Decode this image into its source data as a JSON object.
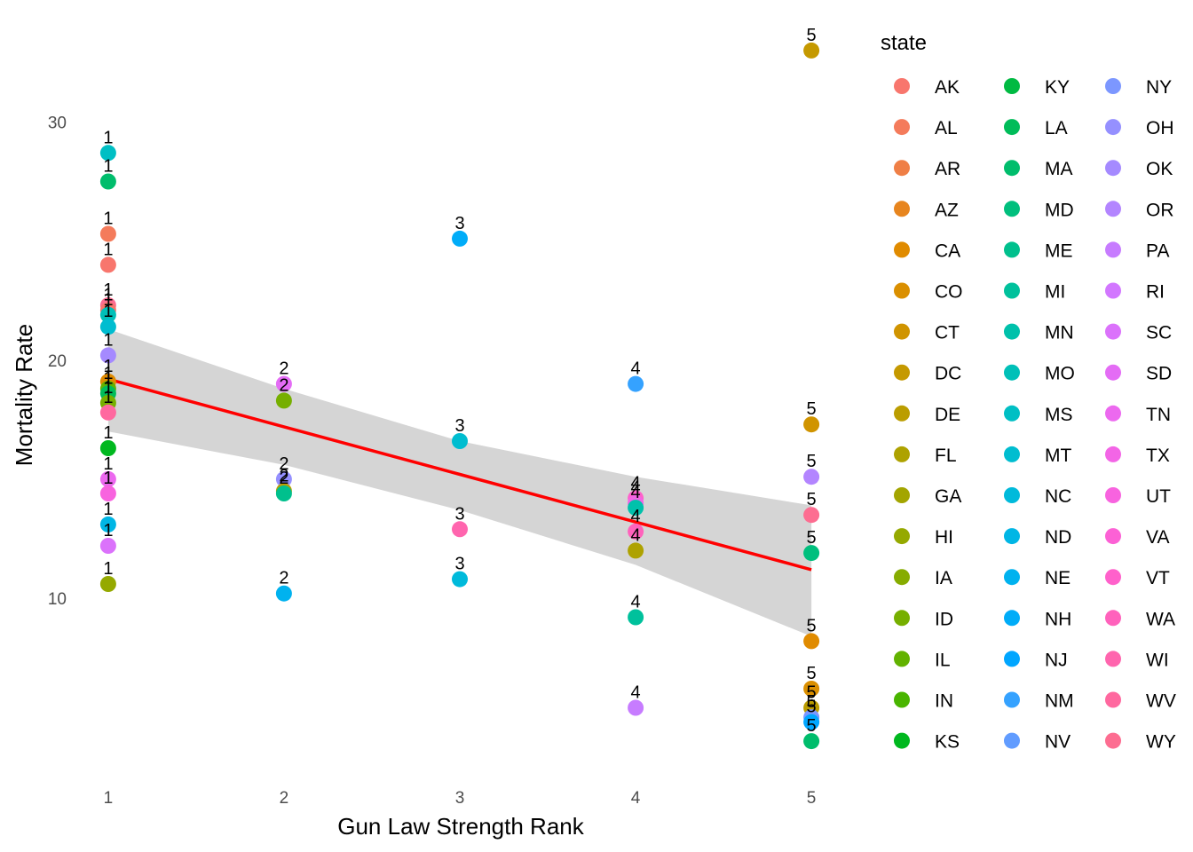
{
  "chart_data": {
    "type": "scatter",
    "xlabel": "Gun Law Strength Rank",
    "ylabel": "Mortality Rate",
    "x_ticks": [
      1,
      2,
      3,
      4,
      5
    ],
    "y_ticks": [
      10,
      20,
      30
    ],
    "xlim": [
      0.93,
      5.07
    ],
    "ylim": [
      2.4,
      34.6
    ],
    "grid": false,
    "legend": {
      "title": "state",
      "placement": "right",
      "columns": 3
    },
    "states": [
      "AK",
      "AL",
      "AR",
      "AZ",
      "CA",
      "CO",
      "CT",
      "DC",
      "DE",
      "FL",
      "GA",
      "HI",
      "IA",
      "ID",
      "IL",
      "IN",
      "KS",
      "KY",
      "LA",
      "MA",
      "MD",
      "ME",
      "MI",
      "MN",
      "MO",
      "MS",
      "MT",
      "NC",
      "ND",
      "NE",
      "NH",
      "NJ",
      "NM",
      "NV",
      "NY",
      "OH",
      "OK",
      "OR",
      "PA",
      "RI",
      "SC",
      "SD",
      "TN",
      "TX",
      "UT",
      "VA",
      "VT",
      "WA",
      "WI",
      "WV",
      "WY"
    ],
    "colors": [
      "#F8766D",
      "#F47B5B",
      "#EF7F46",
      "#E7851E",
      "#E08B00",
      "#DA8F00",
      "#D09400",
      "#C59900",
      "#BB9D00",
      "#AEA200",
      "#A3A500",
      "#95A900",
      "#86AC00",
      "#76AF00",
      "#62B200",
      "#49B500",
      "#00B81F",
      "#00BA42",
      "#00BC59",
      "#00BD6C",
      "#00BF7D",
      "#00C08D",
      "#00C19C",
      "#00C1AB",
      "#00C0B8",
      "#00BFC4",
      "#00BDD0",
      "#00BADB",
      "#00B6E5",
      "#00B2EF",
      "#00ACF8",
      "#00A6FF",
      "#35A2FF",
      "#619CFF",
      "#7C97FF",
      "#9590FF",
      "#A58AFF",
      "#B385FF",
      "#C77CFF",
      "#D277FF",
      "#DB72FB",
      "#E46CF5",
      "#EC69EF",
      "#F365E6",
      "#F863DF",
      "#FC61D5",
      "#FF61CB",
      "#FF62BC",
      "#FF65AE",
      "#FF689F",
      "#FD6D91"
    ],
    "points": [
      {
        "x": 1,
        "y": 28.7,
        "label": "1",
        "color": "#00BFC4"
      },
      {
        "x": 1,
        "y": 27.5,
        "label": "1",
        "color": "#00BD6C"
      },
      {
        "x": 1,
        "y": 25.3,
        "label": "1",
        "color": "#F47B5B"
      },
      {
        "x": 1,
        "y": 24.0,
        "label": "1",
        "color": "#F8766D"
      },
      {
        "x": 1,
        "y": 22.3,
        "label": "1",
        "color": "#FD6D91"
      },
      {
        "x": 1,
        "y": 22.1,
        "label": "1",
        "color": "#F8766D"
      },
      {
        "x": 1,
        "y": 21.9,
        "label": "1",
        "color": "#00C0B8"
      },
      {
        "x": 1,
        "y": 21.4,
        "label": "1",
        "color": "#00BDD0"
      },
      {
        "x": 1,
        "y": 20.2,
        "label": "1",
        "color": "#A58AFF"
      },
      {
        "x": 1,
        "y": 19.1,
        "label": "1",
        "color": "#E08B00"
      },
      {
        "x": 1,
        "y": 18.8,
        "label": "1",
        "color": "#62B200"
      },
      {
        "x": 1,
        "y": 18.6,
        "label": "1",
        "color": "#00BC59"
      },
      {
        "x": 1,
        "y": 18.2,
        "label": "1",
        "color": "#76AF00"
      },
      {
        "x": 1,
        "y": 17.8,
        "label": "1",
        "color": "#FF689F"
      },
      {
        "x": 1,
        "y": 16.3,
        "label": "1",
        "color": "#00B81F"
      },
      {
        "x": 1,
        "y": 15.0,
        "label": "1",
        "color": "#EC69EF"
      },
      {
        "x": 1,
        "y": 14.4,
        "label": "1",
        "color": "#F863DF"
      },
      {
        "x": 1,
        "y": 13.1,
        "label": "1",
        "color": "#00B6E5"
      },
      {
        "x": 1,
        "y": 12.2,
        "label": "1",
        "color": "#DB72FB"
      },
      {
        "x": 1,
        "y": 10.6,
        "label": "1",
        "color": "#95A900"
      },
      {
        "x": 2,
        "y": 19.0,
        "label": "2",
        "color": "#E46CF5"
      },
      {
        "x": 2,
        "y": 18.3,
        "label": "2",
        "color": "#76AF00"
      },
      {
        "x": 2,
        "y": 15.0,
        "label": "2",
        "color": "#9590FF"
      },
      {
        "x": 2,
        "y": 14.5,
        "label": "2",
        "color": "#BB9D00"
      },
      {
        "x": 2,
        "y": 14.4,
        "label": "2",
        "color": "#00C08D"
      },
      {
        "x": 2,
        "y": 10.2,
        "label": "2",
        "color": "#00B2EF"
      },
      {
        "x": 3,
        "y": 25.1,
        "label": "3",
        "color": "#00ACF8"
      },
      {
        "x": 3,
        "y": 16.6,
        "label": "3",
        "color": "#00BDD0"
      },
      {
        "x": 3,
        "y": 12.9,
        "label": "3",
        "color": "#FF65AE"
      },
      {
        "x": 3,
        "y": 10.8,
        "label": "3",
        "color": "#00BADB"
      },
      {
        "x": 4,
        "y": 19.0,
        "label": "4",
        "color": "#35A2FF"
      },
      {
        "x": 4,
        "y": 14.2,
        "label": "4",
        "color": "#FF61CB"
      },
      {
        "x": 4,
        "y": 14.0,
        "label": "4",
        "color": "#F365E6"
      },
      {
        "x": 4,
        "y": 13.8,
        "label": "4",
        "color": "#00C1AB"
      },
      {
        "x": 4,
        "y": 12.8,
        "label": "4",
        "color": "#FF62BC"
      },
      {
        "x": 4,
        "y": 12.0,
        "label": "4",
        "color": "#AEA200"
      },
      {
        "x": 4,
        "y": 9.2,
        "label": "4",
        "color": "#00C19C"
      },
      {
        "x": 4,
        "y": 5.4,
        "label": "4",
        "color": "#C77CFF"
      },
      {
        "x": 5,
        "y": 33.0,
        "label": "5",
        "color": "#C59900"
      },
      {
        "x": 5,
        "y": 17.3,
        "label": "5",
        "color": "#D09400"
      },
      {
        "x": 5,
        "y": 15.1,
        "label": "5",
        "color": "#B385FF"
      },
      {
        "x": 5,
        "y": 13.5,
        "label": "5",
        "color": "#FD6D91"
      },
      {
        "x": 5,
        "y": 11.9,
        "label": "5",
        "color": "#00BF7D"
      },
      {
        "x": 5,
        "y": 8.2,
        "label": "5",
        "color": "#E08B00"
      },
      {
        "x": 5,
        "y": 6.2,
        "label": "5",
        "color": "#DA8F00"
      },
      {
        "x": 5,
        "y": 5.4,
        "label": "5",
        "color": "#BB9D00"
      },
      {
        "x": 5,
        "y": 5.0,
        "label": "5",
        "color": "#7C97FF"
      },
      {
        "x": 5,
        "y": 4.8,
        "label": "5",
        "color": "#00A6FF"
      },
      {
        "x": 5,
        "y": 4.0,
        "label": "5",
        "color": "#00BD6C"
      }
    ],
    "trend": {
      "color": "#FF0000",
      "band_color": "#D3D3D3",
      "x": [
        1,
        2,
        3,
        4,
        5
      ],
      "y": [
        19.2,
        17.2,
        15.2,
        13.2,
        11.2
      ],
      "lower": [
        17.0,
        15.6,
        13.7,
        11.4,
        8.4
      ],
      "upper": [
        21.3,
        18.8,
        16.6,
        15.1,
        13.9
      ]
    }
  }
}
